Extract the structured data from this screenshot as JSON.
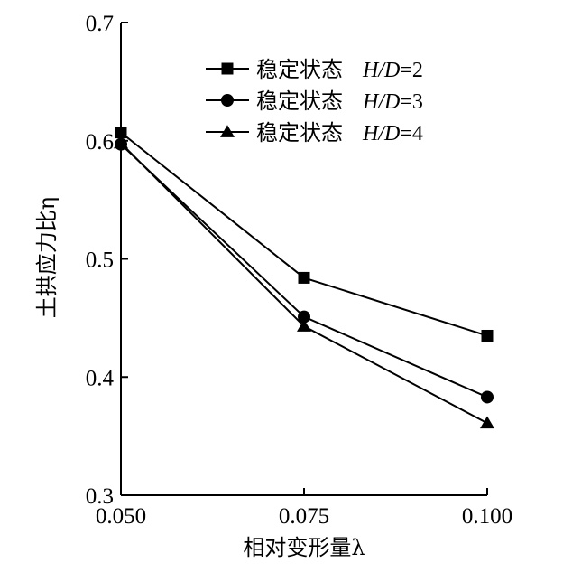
{
  "chart_data": {
    "type": "line",
    "x": [
      0.05,
      0.075,
      0.1
    ],
    "x_tick_labels": [
      "0.050",
      "0.075",
      "0.100"
    ],
    "y_ticks": [
      0.3,
      0.4,
      0.5,
      0.6,
      0.7
    ],
    "y_tick_labels": [
      "0.3",
      "0.4",
      "0.5",
      "0.6",
      "0.7"
    ],
    "xlim": [
      0.05,
      0.1
    ],
    "ylim": [
      0.3,
      0.7
    ],
    "xlabel": "相对变形量λ",
    "ylabel": "土拱应力比η",
    "grid": false,
    "legend_position": "top-right",
    "series": [
      {
        "name": "稳定状态 H/D=2",
        "name_prefix": "稳定状态",
        "name_param": "H/D",
        "name_value": "=2",
        "marker": "square",
        "values": [
          0.607,
          0.484,
          0.435
        ]
      },
      {
        "name": "稳定状态 H/D=3",
        "name_prefix": "稳定状态",
        "name_param": "H/D",
        "name_value": "=3",
        "marker": "circle",
        "values": [
          0.597,
          0.451,
          0.383
        ]
      },
      {
        "name": "稳定状态 H/D=4",
        "name_prefix": "稳定状态",
        "name_param": "H/D",
        "name_value": "=4",
        "marker": "triangle",
        "values": [
          0.598,
          0.443,
          0.361
        ]
      }
    ],
    "colors": {
      "line": "#000000",
      "marker": "#000000",
      "axis": "#000000"
    }
  }
}
